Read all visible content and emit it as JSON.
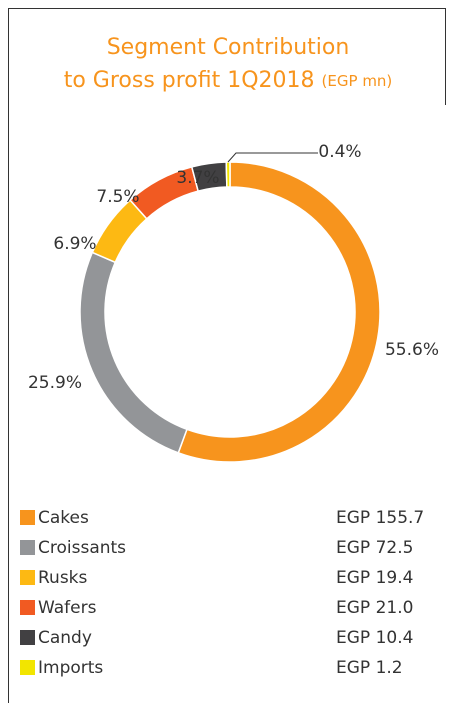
{
  "chart_data": {
    "type": "donut",
    "title_lines": [
      "Segment Contribution",
      "to Gross profit 1Q2018"
    ],
    "title_unit": "(EGP mn)",
    "categories": [
      "Cakes",
      "Croissants",
      "Rusks",
      "Wafers",
      "Candy",
      "Imports"
    ],
    "values": [
      55.6,
      25.9,
      6.9,
      7.5,
      3.7,
      0.4
    ],
    "value_labels": [
      "55.6%",
      "25.9%",
      "6.9%",
      "7.5%",
      "3.7%",
      "0.4%"
    ],
    "amounts": [
      "EGP 155.7",
      "EGP 72.5",
      "EGP 19.4",
      "EGP 21.0",
      "EGP 10.4",
      "EGP 1.2"
    ],
    "colors": [
      "#f7941d",
      "#939598",
      "#fdb913",
      "#f15a22",
      "#414042",
      "#f2e500"
    ]
  }
}
